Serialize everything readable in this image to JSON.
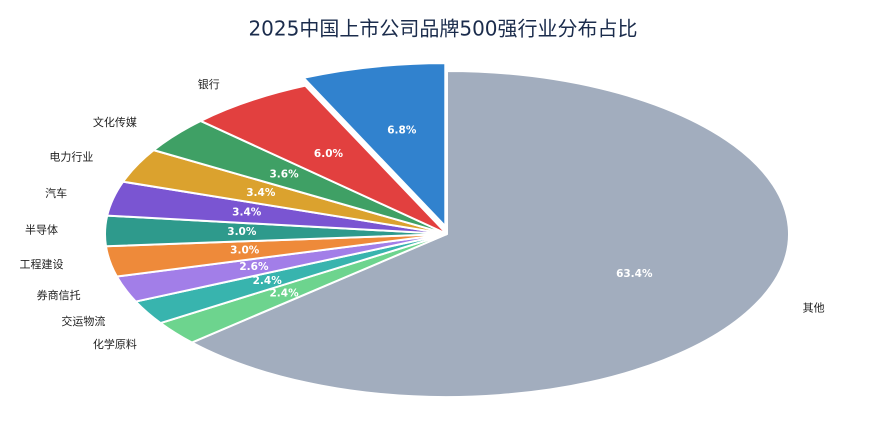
{
  "chart_data": {
    "type": "pie",
    "title": "2025中国上市公司品牌500强行业分布占比",
    "categories": [
      "其他",
      "化学原料",
      "交运物流",
      "券商信托",
      "工程建设",
      "半导体",
      "汽车",
      "电力行业",
      "文化传媒",
      "银行",
      null
    ],
    "values": [
      63.4,
      2.4,
      2.4,
      2.6,
      3.0,
      3.0,
      3.4,
      3.4,
      3.6,
      6.0,
      6.8
    ],
    "value_labels": [
      "63.4%",
      "2.4%",
      "2.4%",
      "2.6%",
      "3.0%",
      "3.0%",
      "3.4%",
      "3.4%",
      "3.6%",
      "6.0%",
      "6.8%"
    ],
    "colors": [
      "#a2adbe",
      "#6dd48e",
      "#38b4ae",
      "#a27ee8",
      "#ee8a3a",
      "#2e9a8c",
      "#7a55d2",
      "#dba22e",
      "#3fa065",
      "#e2403f",
      "#3182ce"
    ],
    "exploded": [
      false,
      false,
      false,
      false,
      false,
      false,
      false,
      false,
      false,
      false,
      true
    ]
  }
}
